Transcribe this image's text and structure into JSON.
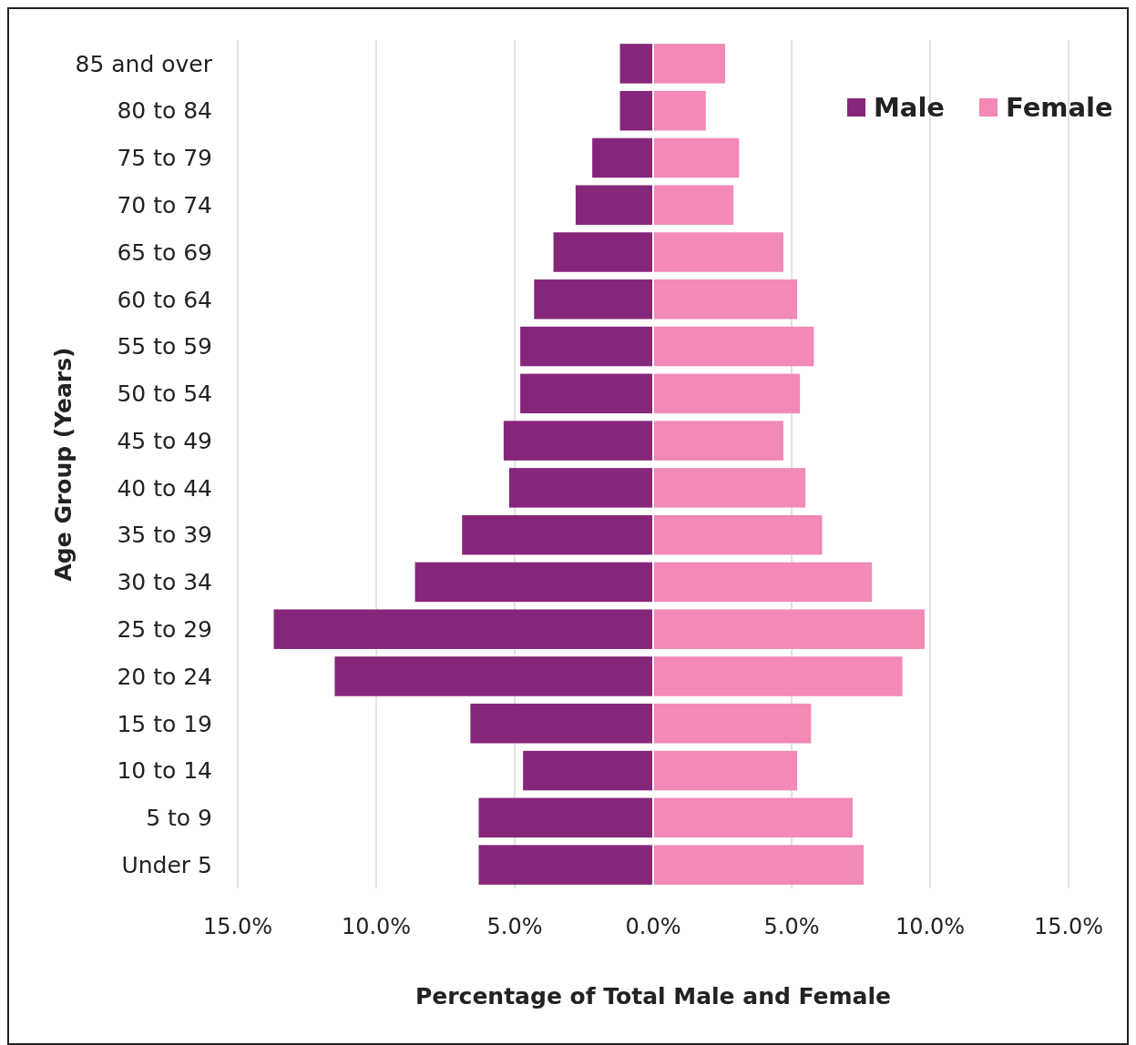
{
  "chart_data": {
    "type": "bar",
    "orientation": "horizontal",
    "stacked": true,
    "xlabel": "Percentage of Total Male and Female",
    "ylabel": "Age Group (Years)",
    "categories": [
      "85 and over",
      "80 to 84",
      "75 to 79",
      "70 to 74",
      "65 to 69",
      "60 to 64",
      "55 to 59",
      "50 to 54",
      "45 to 49",
      "40 to 44",
      "35 to 39",
      "30 to 34",
      "25 to 29",
      "20 to 24",
      "15 to 19",
      "10 to 14",
      "5 to 9",
      "Under 5"
    ],
    "series": [
      {
        "name": "Male",
        "color": "#86267a",
        "values": [
          -1.2,
          -1.2,
          -2.2,
          -2.8,
          -3.6,
          -4.3,
          -4.8,
          -4.8,
          -5.4,
          -5.2,
          -6.9,
          -8.6,
          -13.7,
          -11.5,
          -6.6,
          -4.7,
          -6.3,
          -6.3
        ]
      },
      {
        "name": "Female",
        "color": "#f289b7",
        "values": [
          2.6,
          1.9,
          3.1,
          2.9,
          4.7,
          5.2,
          5.8,
          5.3,
          4.7,
          5.5,
          6.1,
          7.9,
          9.8,
          9.0,
          5.7,
          5.2,
          7.2,
          7.6
        ]
      }
    ],
    "xlim": [
      -15,
      15
    ],
    "xticks": [
      {
        "value": -15,
        "label": "15.0%"
      },
      {
        "value": -10,
        "label": "10.0%"
      },
      {
        "value": -5,
        "label": "5.0%"
      },
      {
        "value": 0,
        "label": "0.0%"
      },
      {
        "value": 5,
        "label": "5.0%"
      },
      {
        "value": 10,
        "label": "10.0%"
      },
      {
        "value": 15,
        "label": "15.0%"
      }
    ],
    "grid": "x",
    "legend": "top right"
  }
}
